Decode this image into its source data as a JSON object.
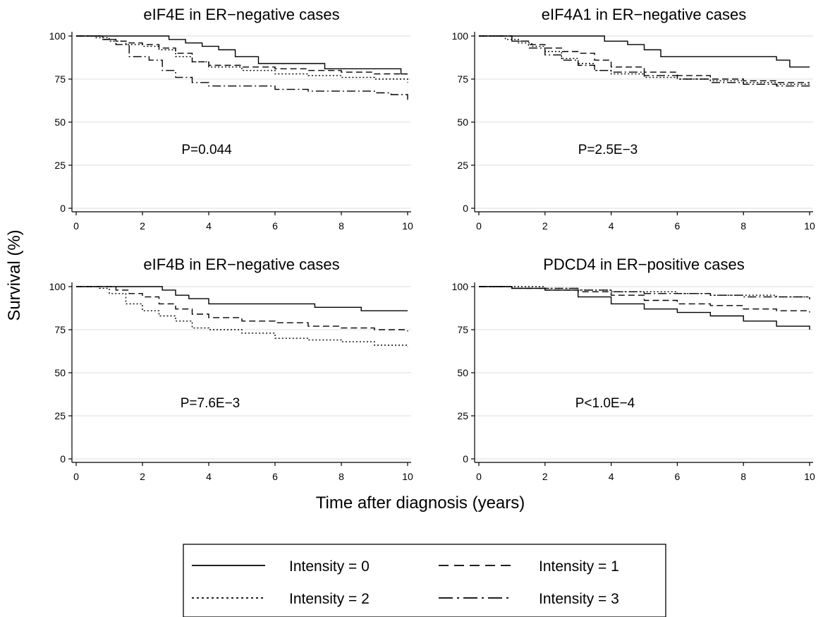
{
  "x_axis_label": "Time after diagnosis (years)",
  "y_axis_label": "Survival (%)",
  "legend": [
    {
      "label": "Intensity = 0",
      "style": "solid"
    },
    {
      "label": "Intensity = 1",
      "style": "dashed"
    },
    {
      "label": "Intensity = 2",
      "style": "dotted"
    },
    {
      "label": "Intensity = 3",
      "style": "dashdot"
    }
  ],
  "chart_data": [
    {
      "type": "line",
      "title": "eIF4E in ER−negative cases",
      "annotation": "P=0.044",
      "xlim": [
        0,
        10
      ],
      "ylim": [
        0,
        100
      ],
      "xticks": [
        0,
        2,
        4,
        6,
        8,
        10
      ],
      "yticks": [
        0,
        25,
        50,
        75,
        100
      ],
      "grid": true,
      "series": [
        {
          "name": "Intensity = 0",
          "style": "solid",
          "x": [
            0,
            2.2,
            2.8,
            3.3,
            3.8,
            4.3,
            4.8,
            5.5,
            7.5,
            9.8,
            10
          ],
          "y": [
            100,
            100,
            98,
            96,
            94,
            92,
            88,
            84,
            81,
            78,
            78
          ]
        },
        {
          "name": "Intensity = 1",
          "style": "dashed",
          "x": [
            0,
            0.8,
            1.2,
            1.6,
            2.0,
            2.5,
            3.0,
            3.5,
            4.0,
            5.0,
            6.0,
            7.0,
            8.0,
            9.0,
            10
          ],
          "y": [
            100,
            98,
            97,
            96,
            95,
            93,
            90,
            85,
            83,
            82,
            81,
            80,
            79,
            78,
            78
          ]
        },
        {
          "name": "Intensity = 2",
          "style": "dotted",
          "x": [
            0,
            0.6,
            1.0,
            1.5,
            2.0,
            2.5,
            3.0,
            3.5,
            4.0,
            5.0,
            6.0,
            7.0,
            8.0,
            9.0,
            10
          ],
          "y": [
            100,
            99,
            97,
            95,
            94,
            92,
            88,
            85,
            82,
            80,
            78,
            77,
            76,
            75,
            73
          ]
        },
        {
          "name": "Intensity = 3",
          "style": "dashdot",
          "x": [
            0,
            0.8,
            1.2,
            1.6,
            2.2,
            2.6,
            3.0,
            3.5,
            4.0,
            5.0,
            6.0,
            7.0,
            8.0,
            9.0,
            9.5,
            10
          ],
          "y": [
            100,
            98,
            95,
            88,
            86,
            80,
            76,
            73,
            71,
            71,
            69,
            68,
            68,
            67,
            66,
            63
          ]
        }
      ]
    },
    {
      "type": "line",
      "title": "eIF4A1 in ER−negative cases",
      "annotation": "P=2.5E−3",
      "xlim": [
        0,
        10
      ],
      "ylim": [
        0,
        100
      ],
      "xticks": [
        0,
        2,
        4,
        6,
        8,
        10
      ],
      "yticks": [
        0,
        25,
        50,
        75,
        100
      ],
      "grid": true,
      "series": [
        {
          "name": "Intensity = 0",
          "style": "solid",
          "x": [
            0,
            3.2,
            3.8,
            4.5,
            5.0,
            5.5,
            8.3,
            9.0,
            9.4,
            10
          ],
          "y": [
            100,
            100,
            97,
            95,
            92,
            88,
            88,
            86,
            82,
            82
          ]
        },
        {
          "name": "Intensity = 1",
          "style": "dashed",
          "x": [
            0,
            1.0,
            1.5,
            2.0,
            2.5,
            3.0,
            3.5,
            4.0,
            5.0,
            6.0,
            7.0,
            8.0,
            9.0,
            10
          ],
          "y": [
            100,
            97,
            95,
            93,
            91,
            90,
            86,
            82,
            79,
            77,
            75,
            74,
            73,
            73
          ]
        },
        {
          "name": "Intensity = 2",
          "style": "dotted",
          "x": [
            0,
            0.8,
            1.2,
            1.6,
            2.0,
            2.5,
            3.0,
            3.5,
            4.0,
            5.0,
            6.0,
            7.0,
            8.0,
            9.0,
            10
          ],
          "y": [
            100,
            98,
            96,
            94,
            91,
            87,
            84,
            80,
            78,
            76,
            75,
            74,
            73,
            72,
            71
          ]
        },
        {
          "name": "Intensity = 3",
          "style": "dashdot",
          "x": [
            0,
            1.0,
            1.5,
            2.0,
            2.5,
            3.0,
            3.5,
            4.0,
            5.0,
            6.0,
            7.0,
            8.0,
            9.0,
            10
          ],
          "y": [
            100,
            97,
            93,
            89,
            86,
            83,
            80,
            79,
            77,
            75,
            73,
            72,
            71,
            70
          ]
        }
      ]
    },
    {
      "type": "line",
      "title": "eIF4B in ER−negative cases",
      "annotation": "P=7.6E−3",
      "xlim": [
        0,
        10
      ],
      "ylim": [
        0,
        100
      ],
      "xticks": [
        0,
        2,
        4,
        6,
        8,
        10
      ],
      "yticks": [
        0,
        25,
        50,
        75,
        100
      ],
      "grid": true,
      "series": [
        {
          "name": "Intensity = 0",
          "style": "solid",
          "x": [
            0,
            2.0,
            2.6,
            3.0,
            3.4,
            4.0,
            6.0,
            7.2,
            8.6,
            10
          ],
          "y": [
            100,
            100,
            98,
            95,
            93,
            90,
            90,
            88,
            86,
            86
          ]
        },
        {
          "name": "Intensity = 1",
          "style": "dashed",
          "x": [
            0,
            1.2,
            1.6,
            2.0,
            2.5,
            3.0,
            3.5,
            4.0,
            5.0,
            6.0,
            7.0,
            8.0,
            9.0,
            10
          ],
          "y": [
            100,
            98,
            96,
            94,
            90,
            87,
            84,
            82,
            80,
            79,
            77,
            76,
            75,
            74
          ]
        },
        {
          "name": "Intensity = 2",
          "style": "dotted",
          "x": [
            0,
            0.7,
            1.0,
            1.5,
            2.0,
            2.5,
            3.0,
            3.5,
            4.0,
            5.0,
            6.0,
            7.0,
            8.0,
            9.0,
            10
          ],
          "y": [
            100,
            99,
            96,
            90,
            86,
            83,
            80,
            76,
            75,
            73,
            70,
            69,
            68,
            66,
            65
          ]
        }
      ]
    },
    {
      "type": "line",
      "title": "PDCD4 in ER−positive cases",
      "annotation": "P<1.0E−4",
      "xlim": [
        0,
        10
      ],
      "ylim": [
        0,
        100
      ],
      "xticks": [
        0,
        2,
        4,
        6,
        8,
        10
      ],
      "yticks": [
        0,
        25,
        50,
        75,
        100
      ],
      "grid": true,
      "series": [
        {
          "name": "Intensity = 0",
          "style": "solid",
          "x": [
            0,
            1.0,
            2.0,
            3.0,
            4.0,
            5.0,
            6.0,
            7.0,
            8.0,
            9.0,
            10
          ],
          "y": [
            100,
            99,
            98,
            94,
            90,
            87,
            85,
            83,
            80,
            77,
            75
          ]
        },
        {
          "name": "Intensity = 1",
          "style": "dashed",
          "x": [
            0,
            1.0,
            2.0,
            3.0,
            4.0,
            5.0,
            6.0,
            7.0,
            8.0,
            9.0,
            10
          ],
          "y": [
            100,
            99,
            98,
            97,
            95,
            92,
            90,
            89,
            87,
            86,
            85
          ]
        },
        {
          "name": "Intensity = 2",
          "style": "dotted",
          "x": [
            0,
            1.0,
            2.0,
            3.0,
            4.0,
            5.0,
            6.0,
            7.0,
            8.0,
            9.0,
            10
          ],
          "y": [
            100,
            100,
            99,
            98,
            97,
            97,
            96,
            95,
            95,
            94,
            92
          ]
        },
        {
          "name": "Intensity = 3",
          "style": "dashdot",
          "x": [
            0,
            1.0,
            2.0,
            3.0,
            4.0,
            5.0,
            6.0,
            7.0,
            8.0,
            9.0,
            10
          ],
          "y": [
            100,
            99,
            99,
            98,
            97,
            96,
            96,
            95,
            94,
            94,
            93
          ]
        }
      ]
    }
  ]
}
